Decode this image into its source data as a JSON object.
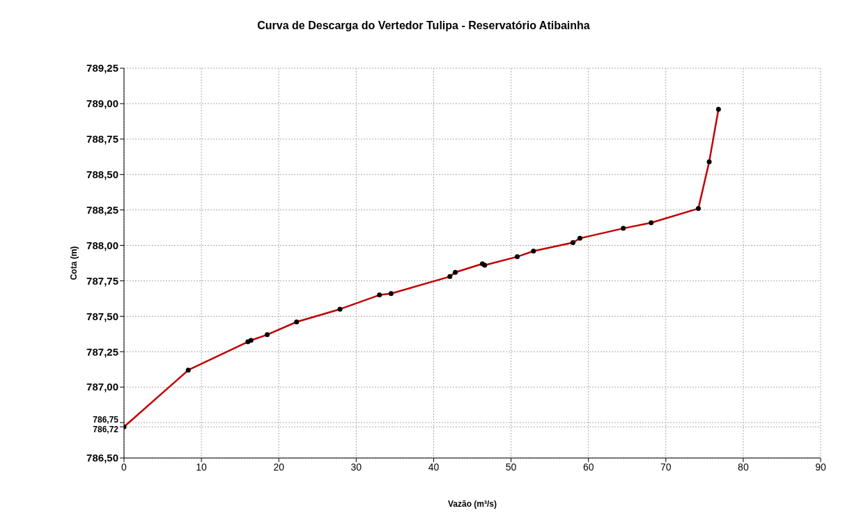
{
  "chart_data": {
    "type": "line",
    "title": "Curva de Descarga do Vertedor Tulipa - Reservatório Atibainha",
    "xlabel": "Vazão (m³/s)",
    "ylabel": "Cota (m)",
    "x": [
      0,
      8.3,
      16.0,
      16.4,
      18.5,
      22.3,
      27.9,
      33.0,
      34.5,
      42.1,
      42.8,
      46.3,
      46.6,
      50.8,
      52.9,
      58.0,
      58.9,
      64.5,
      68.1,
      74.2,
      75.6,
      76.8
    ],
    "series": [
      {
        "color": "#c00000",
        "values": [
          786.72,
          787.12,
          787.32,
          787.33,
          787.37,
          787.46,
          787.55,
          787.65,
          787.66,
          787.78,
          787.81,
          787.87,
          787.86,
          787.92,
          787.96,
          788.02,
          788.05,
          788.12,
          788.16,
          788.26,
          788.59,
          788.96
        ]
      }
    ],
    "xlim": [
      0,
      90
    ],
    "xticks": [
      0,
      10,
      20,
      30,
      40,
      50,
      60,
      70,
      80,
      90
    ],
    "ylim": [
      786.5,
      789.25
    ],
    "yticks": [
      {
        "value": 786.5,
        "label": "786,50"
      },
      {
        "value": 786.72,
        "label": "786,72"
      },
      {
        "value": 786.75,
        "label": "786,75"
      },
      {
        "value": 787,
        "label": "787,00"
      },
      {
        "value": 787.25,
        "label": "787,25"
      },
      {
        "value": 787.5,
        "label": "787,50"
      },
      {
        "value": 787.75,
        "label": "787,75"
      },
      {
        "value": 788,
        "label": "788,00"
      },
      {
        "value": 788.25,
        "label": "788,25"
      },
      {
        "value": 788.5,
        "label": "788,50"
      },
      {
        "value": 788.75,
        "label": "788,75"
      },
      {
        "value": 789,
        "label": "789,00"
      },
      {
        "value": 789.25,
        "label": "789,25"
      }
    ],
    "grid": true,
    "marker": "circle",
    "line_style": "solid"
  }
}
